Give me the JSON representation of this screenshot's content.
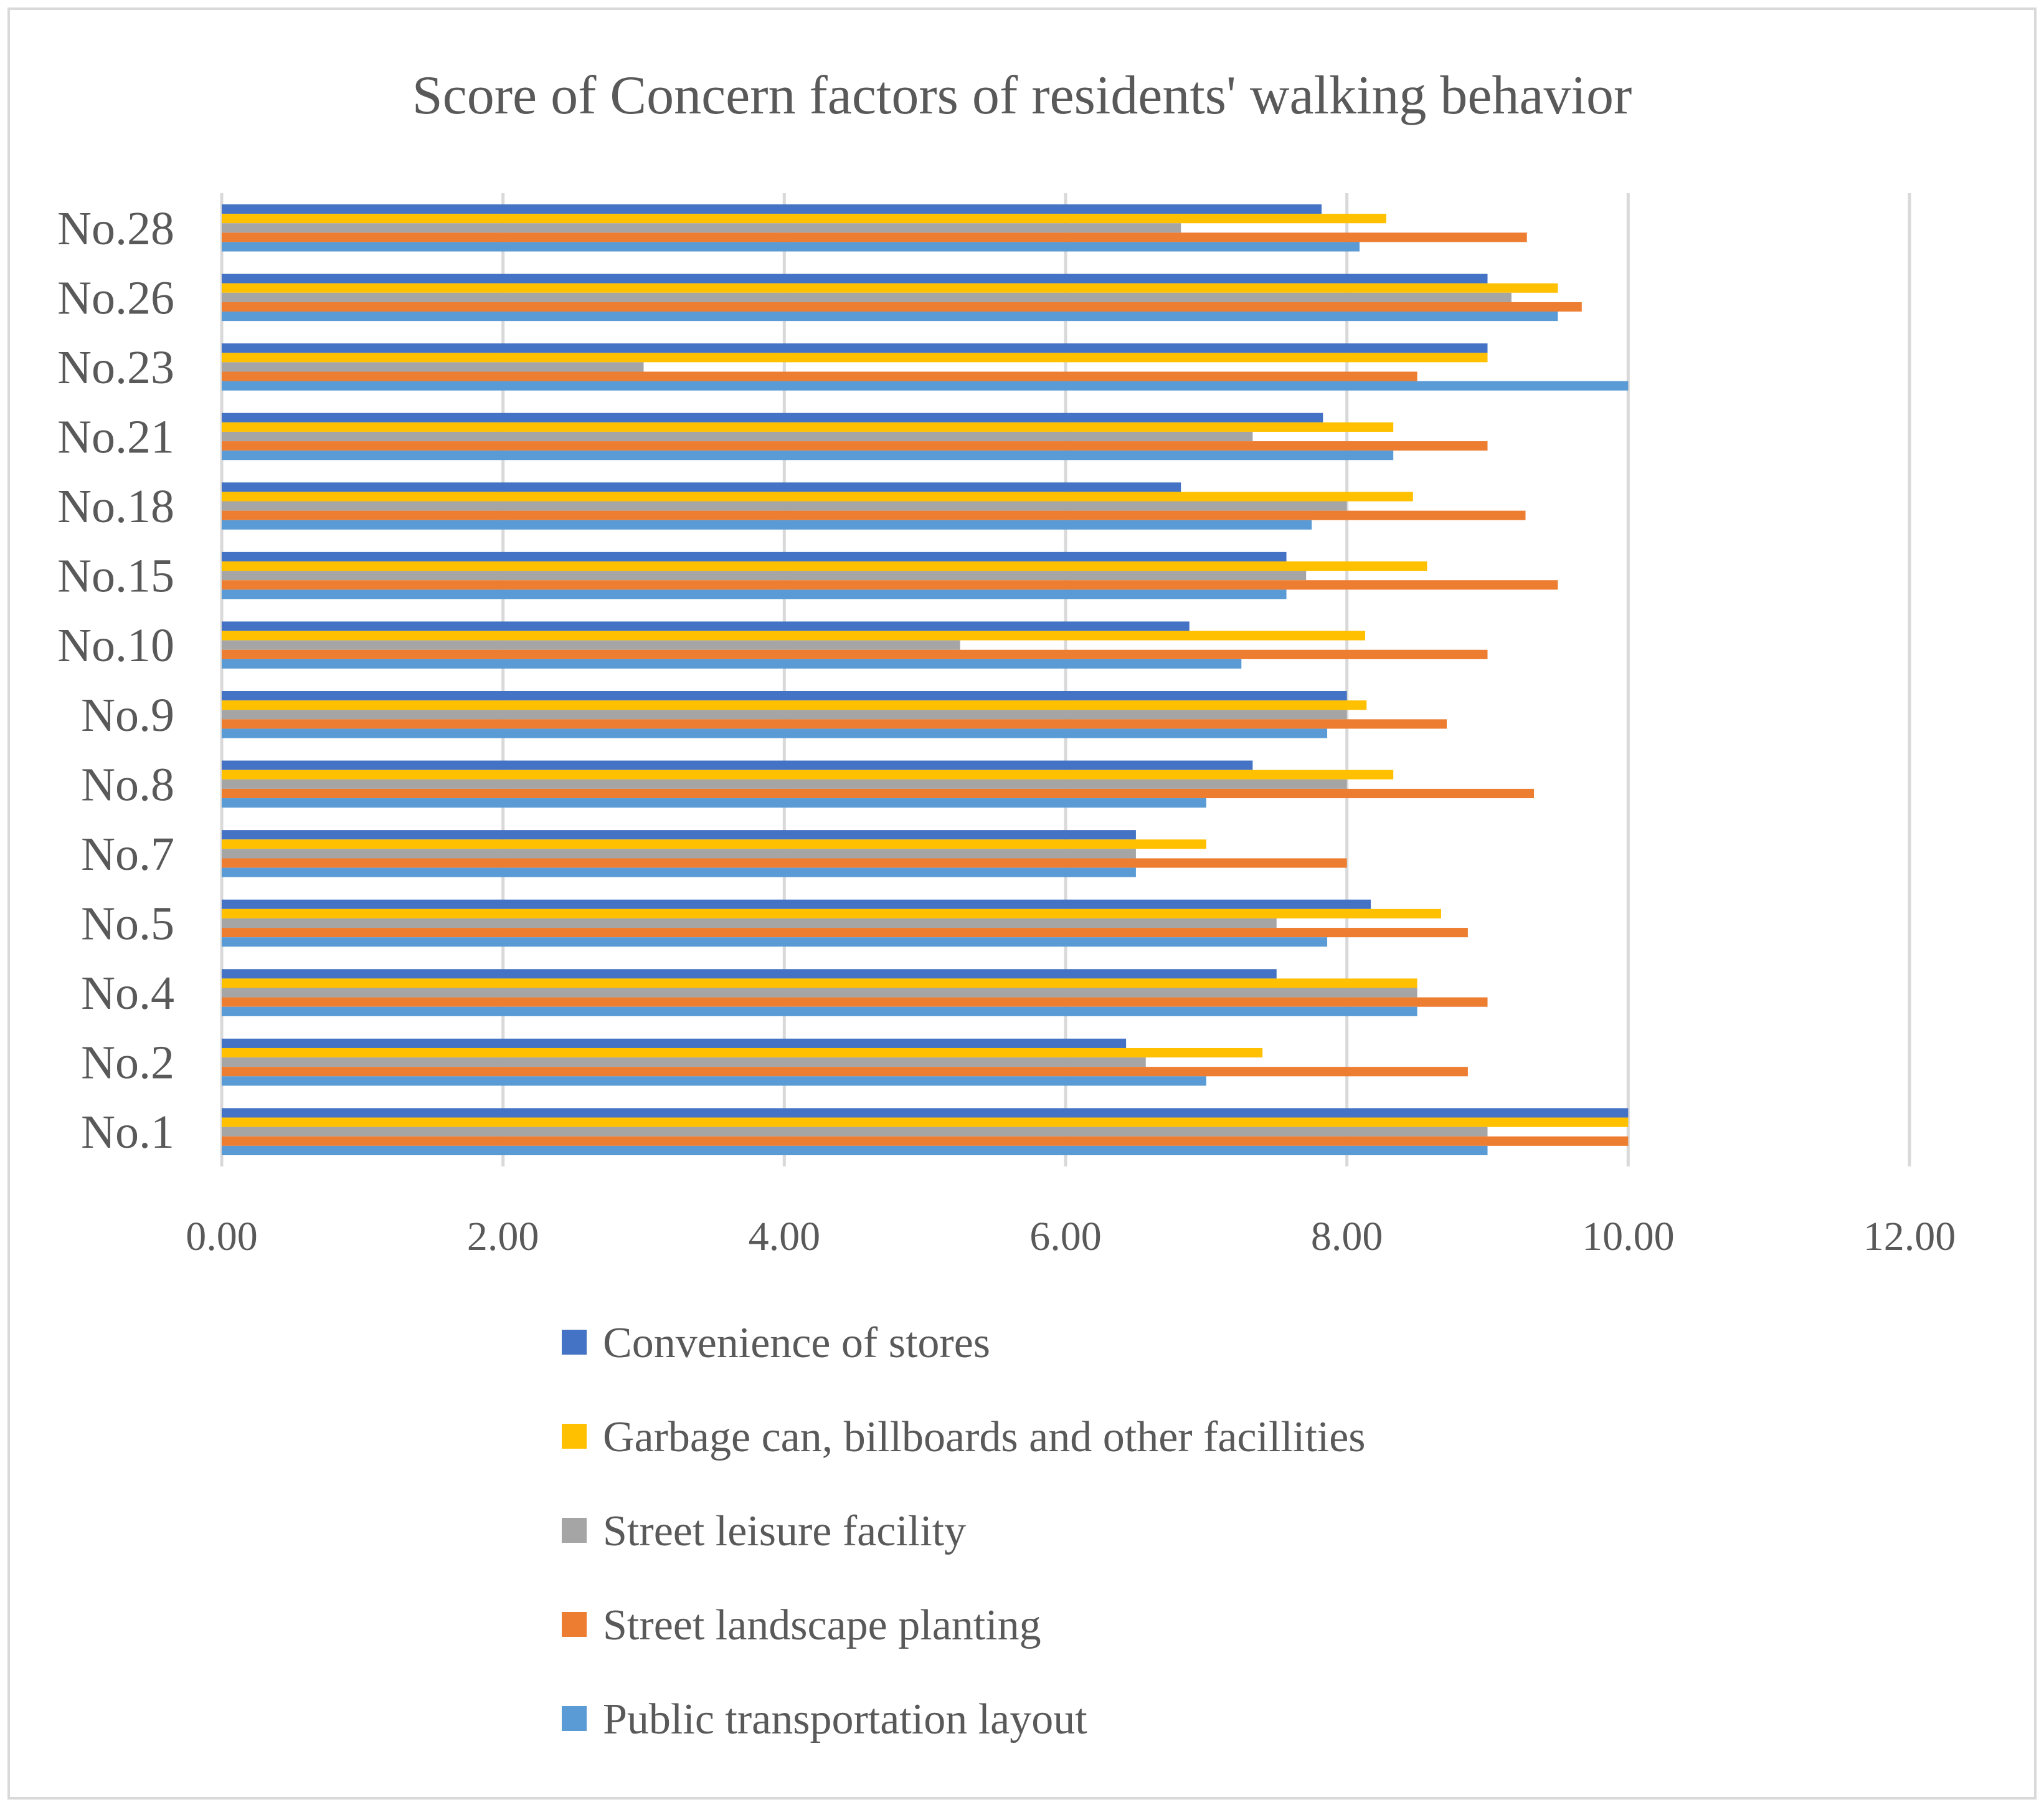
{
  "chart_data": {
    "type": "bar",
    "orientation": "horizontal",
    "title": "Score of Concern factors of residents' walking behavior",
    "xlabel": "",
    "ylabel": "",
    "xlim": [
      0,
      12
    ],
    "x_ticks": [
      "0.00",
      "2.00",
      "4.00",
      "6.00",
      "8.00",
      "10.00",
      "12.00"
    ],
    "grid": true,
    "legend_position": "bottom",
    "categories": [
      "No.1",
      "No.2",
      "No.4",
      "No.5",
      "No.7",
      "No.8",
      "No.9",
      "No.10",
      "No.15",
      "No.18",
      "No.21",
      "No.23",
      "No.26",
      "No.28"
    ],
    "series": [
      {
        "name": "Convenience of stores",
        "color": "#4472c4",
        "values": [
          10.0,
          6.43,
          7.5,
          8.17,
          6.5,
          7.33,
          8.0,
          6.88,
          7.57,
          6.82,
          7.83,
          9.0,
          9.0,
          7.82
        ]
      },
      {
        "name": "Garbage can, billboards and other facillities",
        "color": "#ffc000",
        "values": [
          10.0,
          7.4,
          8.5,
          8.67,
          7.0,
          8.33,
          8.14,
          8.13,
          8.57,
          8.47,
          8.33,
          9.0,
          9.5,
          8.28
        ]
      },
      {
        "name": "Street leisure facility",
        "color": "#a5a5a5",
        "values": [
          9.0,
          6.57,
          8.5,
          7.5,
          6.5,
          8.0,
          8.0,
          5.25,
          7.71,
          8.0,
          7.33,
          3.0,
          9.17,
          6.82
        ]
      },
      {
        "name": "Street landscape planting",
        "color": "#ed7d31",
        "values": [
          10.0,
          8.86,
          9.0,
          8.86,
          8.0,
          9.33,
          8.71,
          9.0,
          9.5,
          9.27,
          9.0,
          8.5,
          9.67,
          9.28
        ]
      },
      {
        "name": "Public transportation layout",
        "color": "#5b9bd5",
        "values": [
          9.0,
          7.0,
          8.5,
          7.86,
          6.5,
          7.0,
          7.86,
          7.25,
          7.57,
          7.75,
          8.33,
          10.0,
          9.5,
          8.09
        ]
      }
    ]
  }
}
